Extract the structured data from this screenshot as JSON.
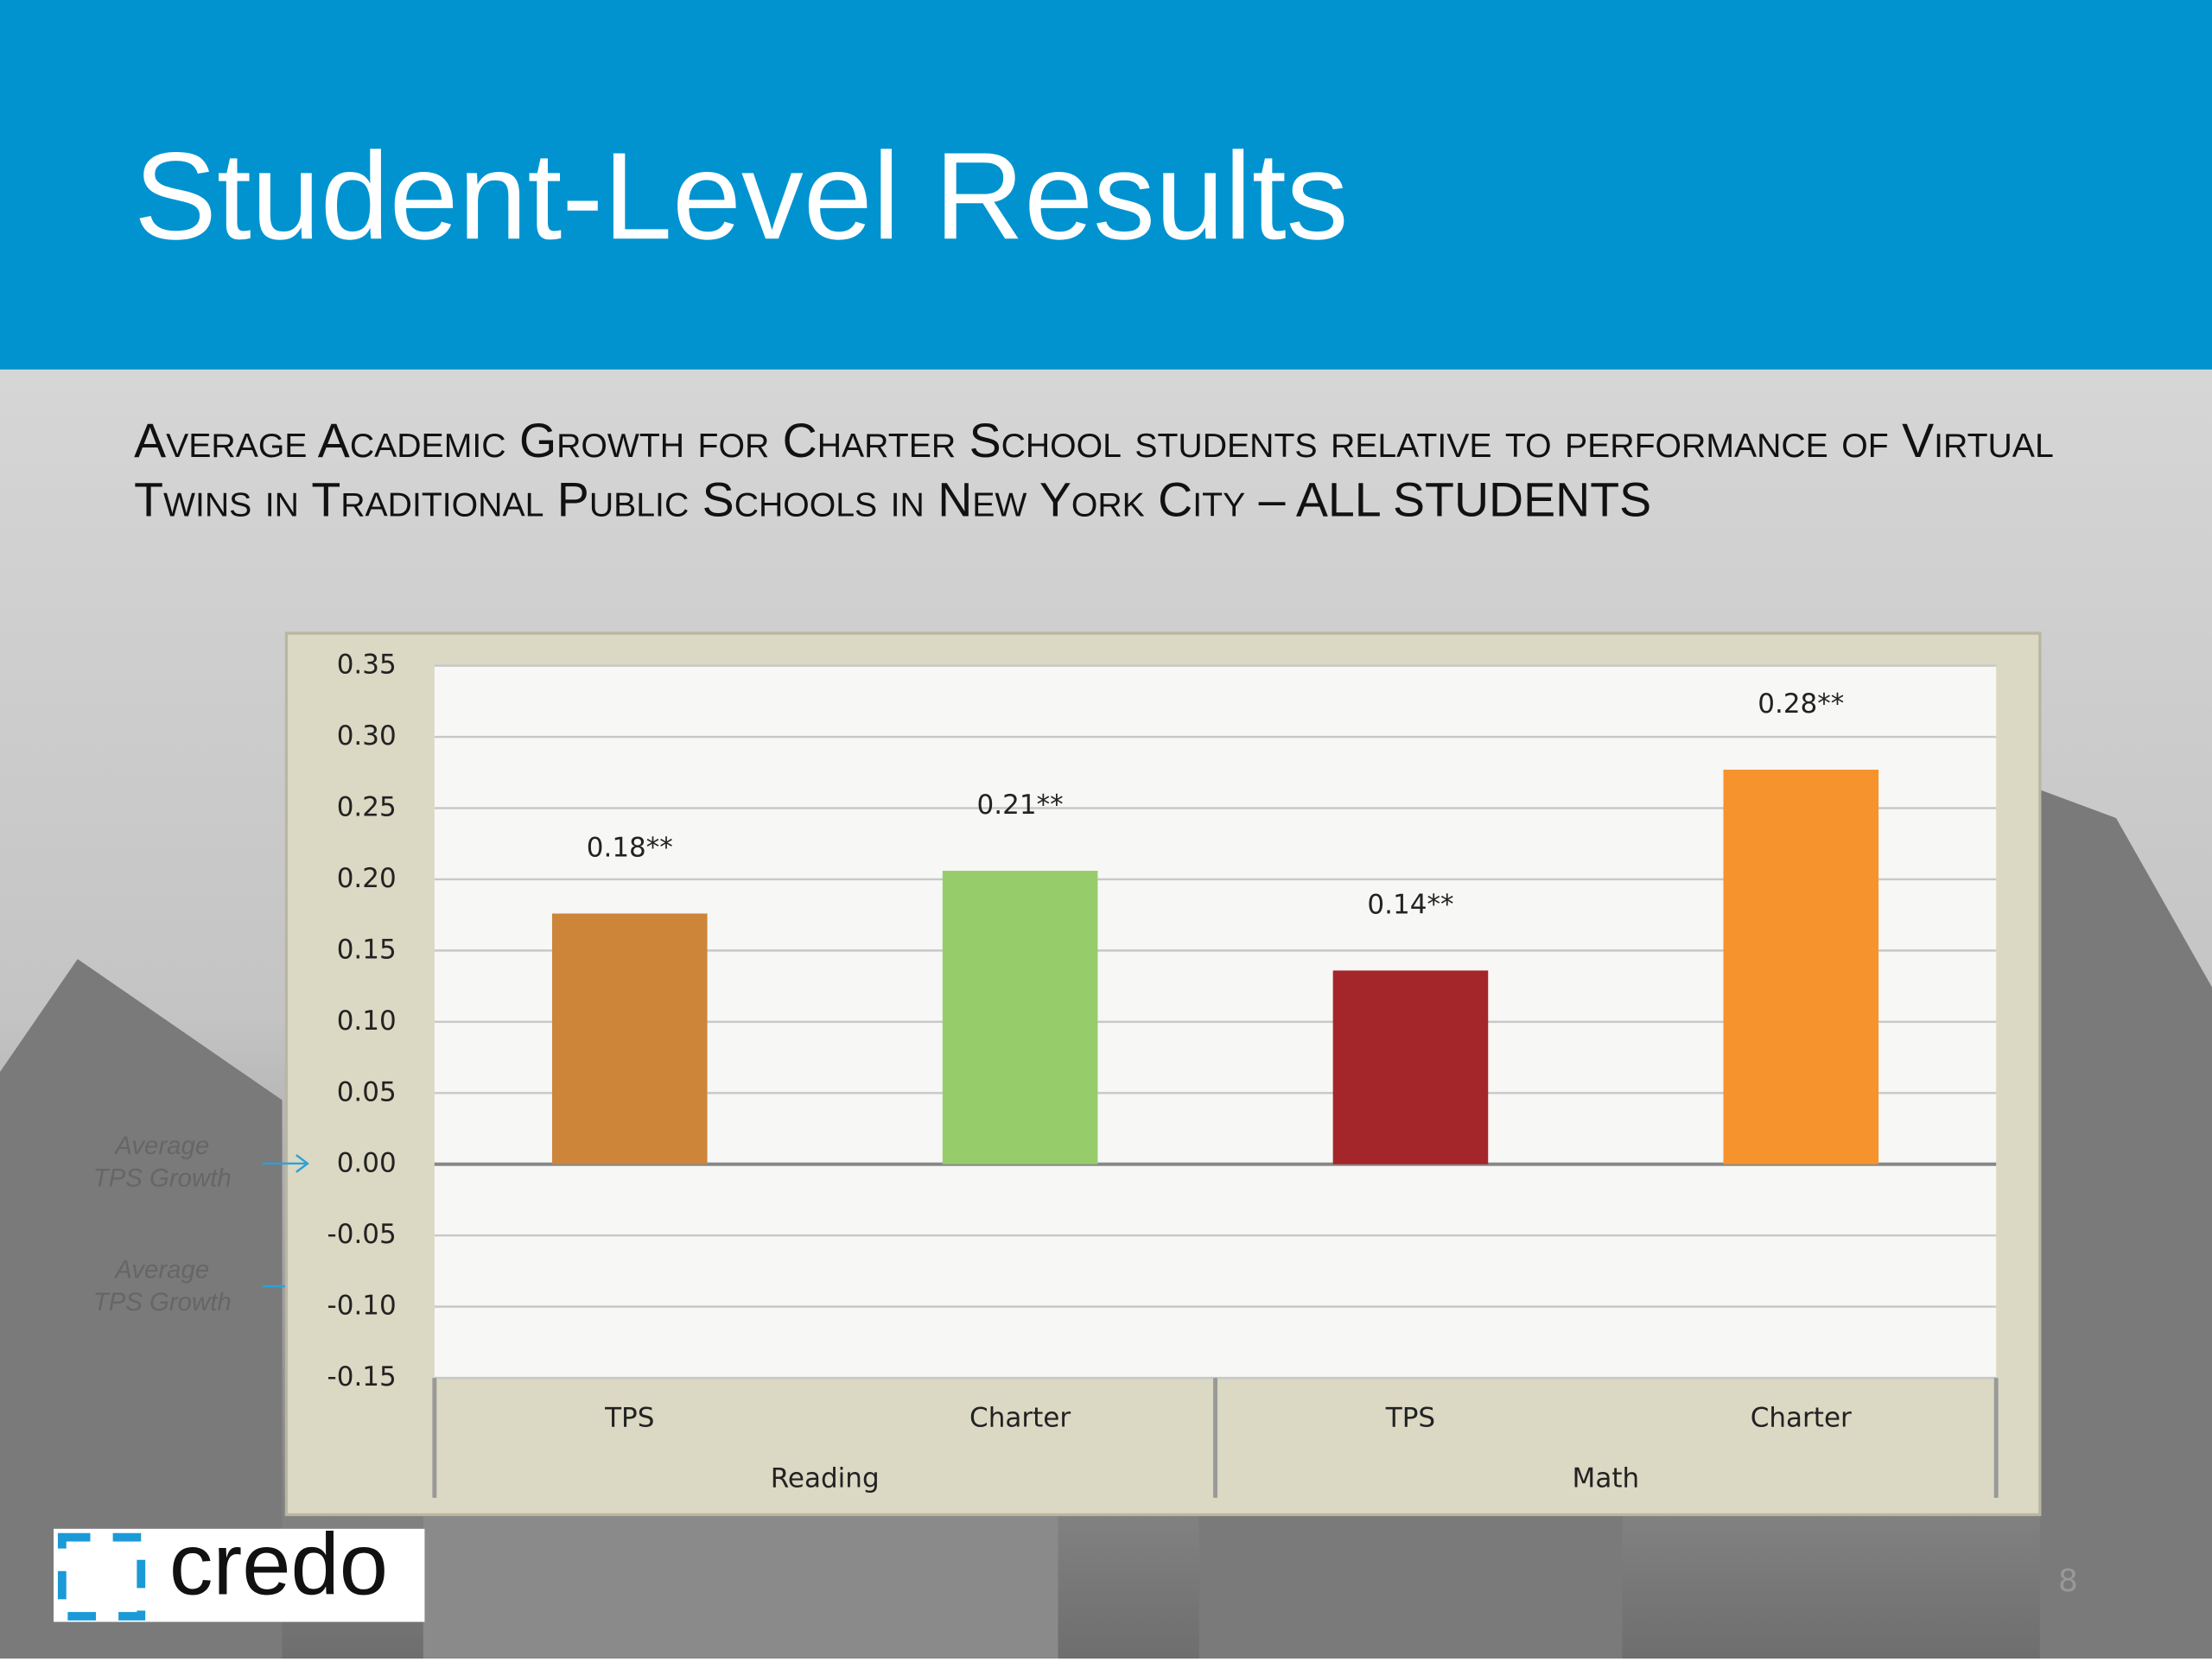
{
  "chart_data": {
    "type": "bar",
    "title": "Student-Level Results",
    "subtitle": "Average Academic Growth for Charter School students relative to performance of Virtual Twins in Traditional Public Schools in New York City – ALL STUDENTS",
    "categories": [
      "TPS",
      "Charter",
      "TPS",
      "Charter"
    ],
    "groups": [
      {
        "name": "Reading",
        "size": 2
      },
      {
        "name": "Math",
        "size": 2
      }
    ],
    "values": [
      0.176,
      0.206,
      0.136,
      0.277
    ],
    "value_labels": [
      "0.18**",
      "0.21**",
      "0.14**",
      "0.28**"
    ],
    "colors": [
      "#cd853a",
      "#96cd6a",
      "#a4262a",
      "#f7932d"
    ],
    "ylim": [
      -0.15,
      0.35
    ],
    "yticks": [
      {
        "value": -0.15,
        "label": "-0.15"
      },
      {
        "value": -0.1,
        "label": "-0.10"
      },
      {
        "value": -0.05,
        "label": "-0.05"
      },
      {
        "value": 0,
        "label": "0.00"
      },
      {
        "value": 0.05,
        "label": "0.05"
      },
      {
        "value": 0.1,
        "label": "0.10"
      },
      {
        "value": 0.15,
        "label": "0.15"
      },
      {
        "value": 0.2,
        "label": "0.20"
      },
      {
        "value": 0.25,
        "label": "0.25"
      },
      {
        "value": 0.3,
        "label": "0.30"
      },
      {
        "value": 0.35,
        "label": "0.35"
      }
    ],
    "grid": true,
    "annotations": [
      [
        "Average",
        "TPS Growth"
      ],
      [
        "Average",
        "TPS Growth"
      ]
    ]
  },
  "logo": "credo",
  "page_number": "8"
}
